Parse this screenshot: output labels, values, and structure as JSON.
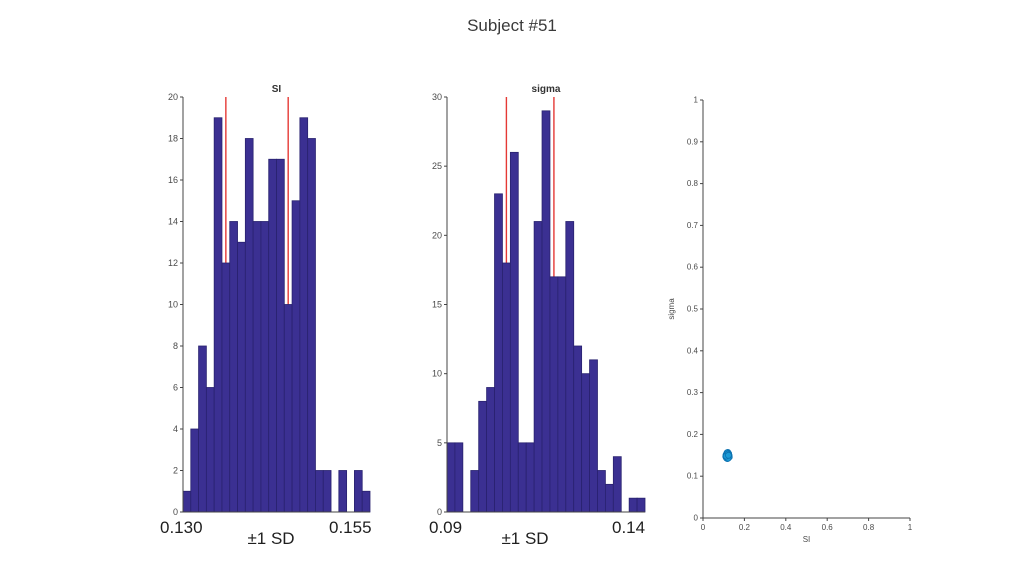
{
  "figure": {
    "title": "Subject #51"
  },
  "colors": {
    "bar_fill": "#3b3092",
    "bar_edge": "#29226f",
    "red_line": "#e53935",
    "scatter_fill": "#1e9cd7",
    "scatter_edge": "#0d72b0",
    "axis": "#444444",
    "tick_text": "#4a4a4a",
    "text": "#333333"
  },
  "chart_data": [
    {
      "type": "bar",
      "id": "si_hist",
      "title": "SI",
      "ylim": [
        0,
        20
      ],
      "yticks": [
        0,
        2,
        4,
        6,
        8,
        10,
        12,
        14,
        16,
        18,
        20
      ],
      "values": [
        1,
        4,
        8,
        6,
        19,
        12,
        14,
        13,
        18,
        14,
        14,
        17,
        17,
        10,
        15,
        19,
        18,
        2,
        2,
        0,
        2,
        0,
        2,
        1
      ],
      "red_lines_at": [
        5.5,
        13.5
      ],
      "annotations": {
        "xmin": "0.130",
        "xmax": "0.155",
        "band": "±1 SD"
      }
    },
    {
      "type": "bar",
      "id": "sigma_hist",
      "title": "sigma",
      "ylim": [
        0,
        30
      ],
      "yticks": [
        0,
        5,
        10,
        15,
        20,
        25,
        30
      ],
      "values": [
        5,
        5,
        0,
        3,
        8,
        9,
        23,
        18,
        26,
        5,
        5,
        21,
        29,
        17,
        17,
        21,
        12,
        10,
        11,
        3,
        2,
        4,
        0,
        1,
        1
      ],
      "red_lines_at": [
        7.5,
        13.5
      ],
      "annotations": {
        "xmin": "0.09",
        "xmax": "0.14",
        "band": "±1 SD"
      }
    },
    {
      "type": "scatter",
      "id": "si_sigma_scatter",
      "xlabel": "SI",
      "ylabel": "sigma",
      "xlim": [
        0,
        1
      ],
      "ylim": [
        0,
        1
      ],
      "xticks": [
        0,
        0.2,
        0.4,
        0.6,
        0.8,
        1
      ],
      "yticks": [
        0,
        0.1,
        0.2,
        0.3,
        0.4,
        0.5,
        0.6,
        0.7,
        0.8,
        0.9,
        1
      ],
      "points": [
        [
          0.112,
          0.15
        ],
        [
          0.118,
          0.154
        ],
        [
          0.122,
          0.148
        ],
        [
          0.115,
          0.143
        ],
        [
          0.125,
          0.151
        ],
        [
          0.12,
          0.157
        ],
        [
          0.11,
          0.147
        ],
        [
          0.117,
          0.15
        ],
        [
          0.123,
          0.144
        ],
        [
          0.113,
          0.152
        ],
        [
          0.119,
          0.146
        ],
        [
          0.126,
          0.149
        ],
        [
          0.116,
          0.156
        ],
        [
          0.121,
          0.151
        ],
        [
          0.114,
          0.145
        ],
        [
          0.124,
          0.154
        ],
        [
          0.118,
          0.142
        ],
        [
          0.111,
          0.151
        ],
        [
          0.127,
          0.146
        ],
        [
          0.12,
          0.148
        ],
        [
          0.115,
          0.149
        ],
        [
          0.122,
          0.152
        ],
        [
          0.117,
          0.147
        ],
        [
          0.113,
          0.144
        ],
        [
          0.125,
          0.15
        ],
        [
          0.119,
          0.153
        ],
        [
          0.116,
          0.146
        ],
        [
          0.121,
          0.143
        ],
        [
          0.112,
          0.148
        ],
        [
          0.123,
          0.15
        ]
      ]
    }
  ]
}
